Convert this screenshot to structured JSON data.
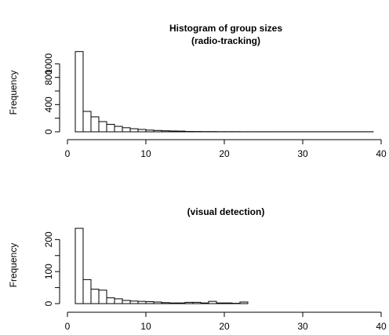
{
  "chart_data": [
    {
      "type": "bar",
      "title": "Histogram of group sizes",
      "subtitle": "(radio-tracking)",
      "xlabel": "",
      "ylabel": "Frequency",
      "xlim": [
        0,
        40
      ],
      "ylim": [
        0,
        1200
      ],
      "x_ticks": [
        "0",
        "10",
        "20",
        "30",
        "40"
      ],
      "y_ticks": [
        "0",
        "400",
        "800",
        "1000"
      ],
      "bin_edges": [
        1,
        2,
        3,
        4,
        5,
        6,
        7,
        8,
        9,
        10,
        11,
        12,
        13,
        14,
        15,
        16,
        17,
        18,
        19,
        20,
        21,
        22,
        23,
        24,
        25,
        26,
        27,
        28,
        29,
        30,
        31,
        32,
        33,
        34,
        35,
        36,
        37,
        38,
        39
      ],
      "values": [
        1180,
        300,
        220,
        150,
        110,
        80,
        60,
        45,
        35,
        25,
        20,
        15,
        12,
        10,
        5,
        4,
        3,
        3,
        2,
        2,
        2,
        1,
        1,
        1,
        1,
        1,
        1,
        1,
        1,
        1,
        1,
        1,
        1,
        1,
        1,
        1,
        1,
        1
      ]
    },
    {
      "type": "bar",
      "title": "",
      "subtitle": "(visual detection)",
      "xlabel": "",
      "ylabel": "Frequency",
      "xlim": [
        0,
        40
      ],
      "ylim": [
        0,
        240
      ],
      "x_ticks": [
        "0",
        "10",
        "20",
        "30",
        "40"
      ],
      "y_ticks": [
        "0",
        "100",
        "200"
      ],
      "bin_edges": [
        1,
        2,
        3,
        4,
        5,
        6,
        7,
        8,
        9,
        10,
        11,
        12,
        13,
        14,
        15,
        16,
        17,
        18,
        19,
        20,
        21,
        22,
        23
      ],
      "values": [
        235,
        75,
        45,
        42,
        18,
        15,
        10,
        8,
        7,
        6,
        5,
        3,
        2,
        2,
        4,
        4,
        2,
        7,
        2,
        2,
        1,
        5
      ]
    }
  ]
}
